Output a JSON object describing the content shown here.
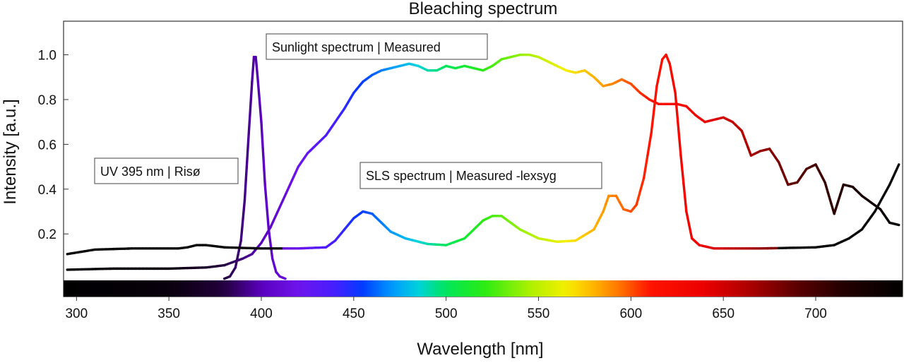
{
  "chart_data": {
    "type": "line",
    "title": "Bleaching spectrum",
    "xlabel": "Wavelength [nm]",
    "ylabel": "Intensity [a.u.]",
    "xlim": [
      293,
      747
    ],
    "ylim": [
      -0.08,
      1.15
    ],
    "x_ticks": [
      300,
      350,
      400,
      450,
      500,
      550,
      600,
      650,
      700
    ],
    "y_ticks": [
      0.2,
      0.4,
      0.6,
      0.8,
      1.0
    ],
    "x_tick_labels": [
      "300",
      "350",
      "400",
      "450",
      "500",
      "550",
      "600",
      "650",
      "700"
    ],
    "y_tick_labels": [
      "0.2",
      "0.4",
      "0.6",
      "0.8",
      "1.0"
    ],
    "grid": false,
    "spectrum_bar": true,
    "annotations": [
      {
        "text": "Sunlight spectrum | Measured",
        "series": "sunlight"
      },
      {
        "text": "UV 395 nm | Risø",
        "series": "uv395"
      },
      {
        "text": "SLS spectrum | Measured -lexsyg",
        "series": "sls"
      }
    ],
    "series": [
      {
        "id": "uv395",
        "color_mode": "wavelength",
        "points": [
          [
            380,
            0.0
          ],
          [
            383,
            0.01
          ],
          [
            386,
            0.05
          ],
          [
            389,
            0.17
          ],
          [
            391,
            0.35
          ],
          [
            393,
            0.62
          ],
          [
            395,
            0.88
          ],
          [
            396,
            0.99
          ],
          [
            397,
            0.99
          ],
          [
            398,
            0.9
          ],
          [
            400,
            0.7
          ],
          [
            402,
            0.42
          ],
          [
            404,
            0.22
          ],
          [
            406,
            0.09
          ],
          [
            408,
            0.03
          ],
          [
            410,
            0.01
          ],
          [
            413,
            0.0
          ]
        ]
      },
      {
        "id": "sunlight",
        "color_mode": "wavelength",
        "points": [
          [
            295,
            0.04
          ],
          [
            320,
            0.045
          ],
          [
            350,
            0.045
          ],
          [
            370,
            0.05
          ],
          [
            380,
            0.06
          ],
          [
            390,
            0.09
          ],
          [
            395,
            0.11
          ],
          [
            400,
            0.16
          ],
          [
            405,
            0.23
          ],
          [
            410,
            0.32
          ],
          [
            415,
            0.41
          ],
          [
            420,
            0.5
          ],
          [
            425,
            0.56
          ],
          [
            430,
            0.6
          ],
          [
            435,
            0.64
          ],
          [
            440,
            0.7
          ],
          [
            445,
            0.76
          ],
          [
            450,
            0.83
          ],
          [
            455,
            0.88
          ],
          [
            460,
            0.91
          ],
          [
            465,
            0.93
          ],
          [
            470,
            0.94
          ],
          [
            475,
            0.95
          ],
          [
            480,
            0.96
          ],
          [
            485,
            0.95
          ],
          [
            490,
            0.93
          ],
          [
            495,
            0.93
          ],
          [
            500,
            0.95
          ],
          [
            505,
            0.94
          ],
          [
            510,
            0.95
          ],
          [
            515,
            0.94
          ],
          [
            520,
            0.93
          ],
          [
            525,
            0.95
          ],
          [
            530,
            0.98
          ],
          [
            535,
            0.99
          ],
          [
            540,
            1.0
          ],
          [
            545,
            1.0
          ],
          [
            550,
            0.99
          ],
          [
            555,
            0.97
          ],
          [
            560,
            0.95
          ],
          [
            565,
            0.93
          ],
          [
            570,
            0.92
          ],
          [
            575,
            0.93
          ],
          [
            580,
            0.9
          ],
          [
            585,
            0.86
          ],
          [
            590,
            0.87
          ],
          [
            595,
            0.89
          ],
          [
            600,
            0.87
          ],
          [
            605,
            0.83
          ],
          [
            610,
            0.8
          ],
          [
            615,
            0.78
          ],
          [
            620,
            0.78
          ],
          [
            625,
            0.78
          ],
          [
            630,
            0.77
          ],
          [
            635,
            0.73
          ],
          [
            640,
            0.7
          ],
          [
            645,
            0.71
          ],
          [
            650,
            0.72
          ],
          [
            655,
            0.7
          ],
          [
            660,
            0.66
          ],
          [
            665,
            0.55
          ],
          [
            670,
            0.57
          ],
          [
            675,
            0.58
          ],
          [
            680,
            0.52
          ],
          [
            685,
            0.42
          ],
          [
            690,
            0.43
          ],
          [
            695,
            0.49
          ],
          [
            700,
            0.51
          ],
          [
            705,
            0.43
          ],
          [
            710,
            0.29
          ],
          [
            715,
            0.42
          ],
          [
            720,
            0.41
          ],
          [
            725,
            0.37
          ],
          [
            730,
            0.34
          ],
          [
            735,
            0.31
          ],
          [
            740,
            0.25
          ],
          [
            745,
            0.24
          ]
        ]
      },
      {
        "id": "sls",
        "color_mode": "mixed",
        "black_before": 412,
        "black_after": 680,
        "points": [
          [
            295,
            0.11
          ],
          [
            310,
            0.13
          ],
          [
            330,
            0.135
          ],
          [
            355,
            0.135
          ],
          [
            360,
            0.14
          ],
          [
            365,
            0.15
          ],
          [
            370,
            0.15
          ],
          [
            380,
            0.14
          ],
          [
            400,
            0.135
          ],
          [
            420,
            0.135
          ],
          [
            435,
            0.14
          ],
          [
            440,
            0.17
          ],
          [
            445,
            0.22
          ],
          [
            450,
            0.27
          ],
          [
            455,
            0.3
          ],
          [
            460,
            0.29
          ],
          [
            465,
            0.25
          ],
          [
            470,
            0.21
          ],
          [
            478,
            0.18
          ],
          [
            490,
            0.155
          ],
          [
            500,
            0.15
          ],
          [
            510,
            0.18
          ],
          [
            520,
            0.26
          ],
          [
            525,
            0.28
          ],
          [
            530,
            0.28
          ],
          [
            540,
            0.22
          ],
          [
            550,
            0.18
          ],
          [
            560,
            0.165
          ],
          [
            570,
            0.17
          ],
          [
            580,
            0.22
          ],
          [
            585,
            0.3
          ],
          [
            588,
            0.37
          ],
          [
            592,
            0.37
          ],
          [
            596,
            0.31
          ],
          [
            600,
            0.3
          ],
          [
            603,
            0.33
          ],
          [
            607,
            0.45
          ],
          [
            611,
            0.65
          ],
          [
            614,
            0.86
          ],
          [
            617,
            0.98
          ],
          [
            619,
            1.0
          ],
          [
            621,
            0.96
          ],
          [
            624,
            0.83
          ],
          [
            627,
            0.55
          ],
          [
            630,
            0.3
          ],
          [
            633,
            0.18
          ],
          [
            637,
            0.15
          ],
          [
            645,
            0.135
          ],
          [
            670,
            0.135
          ],
          [
            700,
            0.14
          ],
          [
            710,
            0.15
          ],
          [
            718,
            0.18
          ],
          [
            725,
            0.22
          ],
          [
            732,
            0.3
          ],
          [
            740,
            0.42
          ],
          [
            745,
            0.51
          ]
        ]
      }
    ]
  }
}
